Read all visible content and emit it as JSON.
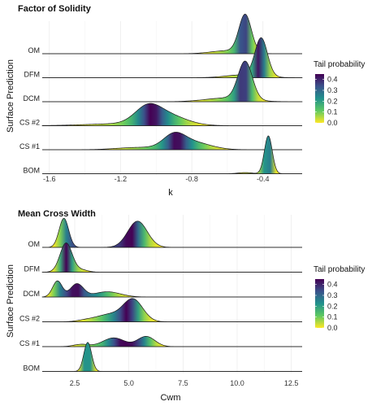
{
  "legend": {
    "title": "Tail probability",
    "ticks": [
      0.4,
      0.3,
      0.2,
      0.1,
      0.0
    ],
    "tick_labels": [
      "0.4",
      "0.3",
      "0.2",
      "0.1",
      "0.0"
    ],
    "colors": [
      "#fde725",
      "#5ec962",
      "#21918c",
      "#3b528b",
      "#440154"
    ]
  },
  "chart_data": [
    {
      "type": "ridgeline",
      "title": "Factor of Solidity",
      "xlabel": "k",
      "ylabel": "Surface Prediction",
      "xlim": [
        -1.64,
        -0.18
      ],
      "xticks": [
        -1.6,
        -1.2,
        -0.8,
        -0.4
      ],
      "xtick_labels": [
        "-1.6",
        "-1.2",
        "-0.8",
        "-0.4"
      ],
      "categories": [
        "OM",
        "DFM",
        "DCM",
        "CS #2",
        "CS #1",
        "BOM"
      ],
      "series": [
        {
          "name": "OM",
          "peaks": [
            {
              "mu": -0.5,
              "sd": 0.035,
              "w": 1.0
            },
            {
              "mu": -0.6,
              "sd": 0.09,
              "w": 0.08
            }
          ]
        },
        {
          "name": "DFM",
          "peaks": [
            {
              "mu": -0.41,
              "sd": 0.035,
              "w": 1.0
            },
            {
              "mu": -0.5,
              "sd": 0.1,
              "w": 0.08
            }
          ]
        },
        {
          "name": "DCM",
          "peaks": [
            {
              "mu": -0.5,
              "sd": 0.04,
              "w": 1.0
            },
            {
              "mu": -0.6,
              "sd": 0.12,
              "w": 0.1
            }
          ]
        },
        {
          "name": "CS #2",
          "peaks": [
            {
              "mu": -1.05,
              "sd": 0.07,
              "w": 0.35
            },
            {
              "mu": -0.95,
              "sd": 0.11,
              "w": 0.28
            },
            {
              "mu": -1.2,
              "sd": 0.2,
              "w": 0.05
            }
          ]
        },
        {
          "name": "CS #1",
          "peaks": [
            {
              "mu": -0.9,
              "sd": 0.06,
              "w": 0.32
            },
            {
              "mu": -0.8,
              "sd": 0.1,
              "w": 0.2
            },
            {
              "mu": -1.1,
              "sd": 0.12,
              "w": 0.06
            }
          ]
        },
        {
          "name": "BOM",
          "peaks": [
            {
              "mu": -0.37,
              "sd": 0.022,
              "w": 1.0
            },
            {
              "mu": -0.5,
              "sd": 0.04,
              "w": 0.03
            }
          ]
        }
      ]
    },
    {
      "type": "ridgeline",
      "title": "Mean Cross Width",
      "xlabel": "Cwm",
      "ylabel": "Surface Prediction",
      "xlim": [
        1.0,
        13.0
      ],
      "xticks": [
        2.5,
        5.0,
        7.5,
        10.0,
        12.5
      ],
      "xtick_labels": [
        "2.5",
        "5.0",
        "7.5",
        "10.0",
        "12.5"
      ],
      "categories": [
        "OM",
        "DFM",
        "DCM",
        "CS #2",
        "CS #1",
        "BOM"
      ],
      "series": [
        {
          "name": "OM",
          "peaks": [
            {
              "mu": 2.0,
              "sd": 0.22,
              "w": 1.0
            },
            {
              "mu": 5.4,
              "sd": 0.45,
              "w": 0.9
            }
          ]
        },
        {
          "name": "DFM",
          "peaks": [
            {
              "mu": 2.1,
              "sd": 0.28,
              "w": 1.0
            },
            {
              "mu": 2.8,
              "sd": 0.3,
              "w": 0.08
            }
          ]
        },
        {
          "name": "DCM",
          "peaks": [
            {
              "mu": 1.7,
              "sd": 0.22,
              "w": 0.55
            },
            {
              "mu": 2.6,
              "sd": 0.3,
              "w": 0.45
            },
            {
              "mu": 4.0,
              "sd": 0.6,
              "w": 0.18
            }
          ]
        },
        {
          "name": "CS #2",
          "peaks": [
            {
              "mu": 5.2,
              "sd": 0.45,
              "w": 0.75
            },
            {
              "mu": 4.1,
              "sd": 0.6,
              "w": 0.25
            },
            {
              "mu": 3.0,
              "sd": 0.4,
              "w": 0.05
            }
          ]
        },
        {
          "name": "CS #1",
          "peaks": [
            {
              "mu": 4.3,
              "sd": 0.5,
              "w": 0.3
            },
            {
              "mu": 5.8,
              "sd": 0.4,
              "w": 0.35
            },
            {
              "mu": 2.8,
              "sd": 0.35,
              "w": 0.08
            }
          ]
        },
        {
          "name": "BOM",
          "peaks": [
            {
              "mu": 3.1,
              "sd": 0.18,
              "w": 1.0
            }
          ]
        }
      ]
    }
  ]
}
